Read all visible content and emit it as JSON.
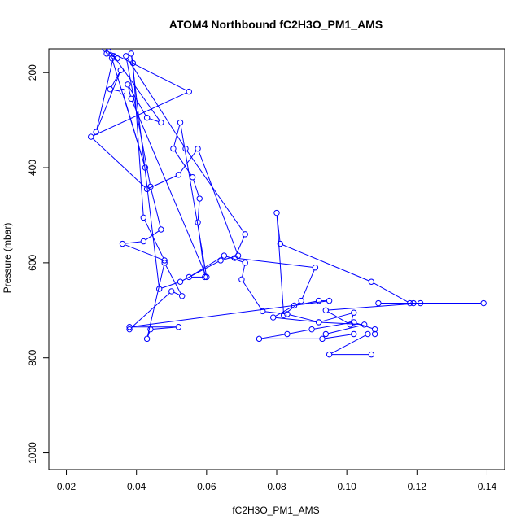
{
  "chart_data": {
    "type": "line",
    "title": "ATOM4 Northbound fC2H3O_PM1_AMS",
    "xlabel": "fC2H3O_PM1_AMS",
    "ylabel": "Pressure (mbar)",
    "xlim": [
      0.015,
      0.145
    ],
    "ylim": [
      1035,
      150
    ],
    "y_reversed": true,
    "x_ticks": [
      0.02,
      0.04,
      0.06,
      0.08,
      0.1,
      0.12,
      0.14
    ],
    "x_tick_labels": [
      "0.02",
      "0.04",
      "0.06",
      "0.08",
      "0.10",
      "0.12",
      "0.14"
    ],
    "y_ticks": [
      200,
      400,
      600,
      800,
      1000
    ],
    "y_tick_labels": [
      "200",
      "400",
      "600",
      "800",
      "1000"
    ],
    "grid": false,
    "legend": "none",
    "colors": {
      "series": "#0000ff",
      "frame": "#000000"
    },
    "marker": "open-circle",
    "series": [
      {
        "values_note": "connected path in acquisition order",
        "x": [
          0.107,
          0.095,
          0.106,
          0.102,
          0.093,
          0.075,
          0.083,
          0.09,
          0.102,
          0.108,
          0.108,
          0.094,
          0.105,
          0.092,
          0.083,
          0.076,
          0.07,
          0.071,
          0.065,
          0.055,
          0.0595,
          0.0575,
          0.058,
          0.056,
          0.0505,
          0.0525,
          0.06,
          0.0385,
          0.0375,
          0.043,
          0.047,
          0.0335,
          0.0285,
          0.0355,
          0.0325,
          0.036,
          0.0425,
          0.033,
          0.0315,
          0.0345,
          0.031,
          0.032,
          0.055,
          0.027,
          0.043,
          0.052,
          0.0575,
          0.069,
          0.064,
          0.0525,
          0.0465,
          0.0385,
          0.039,
          0.042,
          0.048,
          0.036,
          0.042,
          0.047,
          0.044,
          0.037,
          0.054,
          0.071,
          0.068,
          0.091,
          0.087,
          0.082,
          0.08,
          0.081,
          0.107,
          0.118,
          0.139,
          0.119,
          0.109,
          0.121,
          0.094,
          0.101,
          0.102,
          0.092,
          0.079,
          0.085,
          0.092,
          0.095,
          0.038,
          0.052,
          0.044,
          0.043,
          0.048,
          0.053,
          0.05,
          0.038
        ]
      }
    ],
    "y_values": [
      793,
      793,
      750,
      750,
      760,
      760,
      750,
      740,
      725,
      740,
      750,
      750,
      730,
      725,
      708,
      702,
      635,
      600,
      585,
      630,
      630,
      515,
      465,
      420,
      360,
      305,
      630,
      255,
      225,
      295,
      305,
      165,
      325,
      195,
      235,
      240,
      400,
      170,
      160,
      170,
      150,
      155,
      240,
      335,
      445,
      415,
      360,
      585,
      595,
      640,
      655,
      160,
      180,
      505,
      595,
      560,
      555,
      530,
      440,
      165,
      360,
      540,
      590,
      610,
      680,
      710,
      495,
      560,
      640,
      685,
      685,
      685,
      685,
      685,
      700,
      730,
      705,
      725,
      715,
      690,
      680,
      680,
      735,
      735,
      740,
      760,
      600,
      670,
      660,
      740
    ]
  }
}
